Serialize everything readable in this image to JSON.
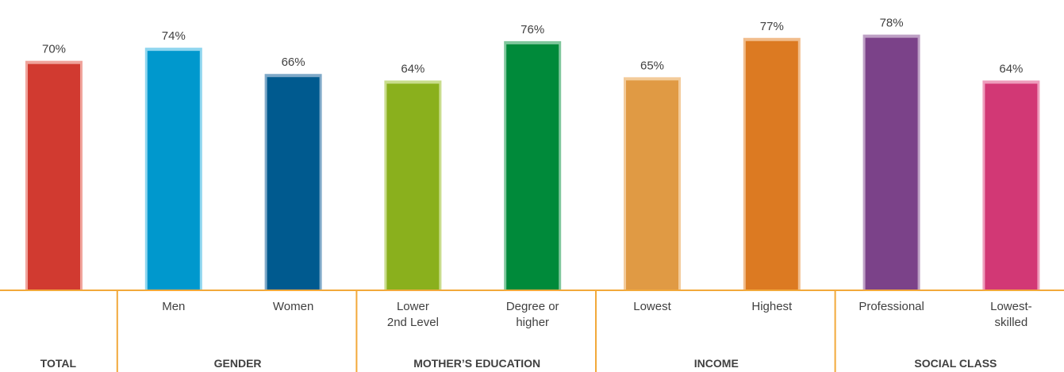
{
  "chart_data": {
    "type": "bar",
    "ylim": [
      0,
      100
    ],
    "grid": false,
    "categories": [
      {
        "id": "total",
        "label": [],
        "value": 70,
        "value_label": "70%",
        "color": "#d13a30",
        "border": "#f0a49c"
      },
      {
        "id": "men",
        "label": [
          "Men"
        ],
        "value": 74,
        "value_label": "74%",
        "color": "#0098cd",
        "border": "#8fd6ef"
      },
      {
        "id": "women",
        "label": [
          "Women"
        ],
        "value": 66,
        "value_label": "66%",
        "color": "#005a8f",
        "border": "#7fa9c8"
      },
      {
        "id": "lower-2nd-level",
        "label": [
          "Lower",
          "2nd Level"
        ],
        "value": 64,
        "value_label": "64%",
        "color": "#8ab01d",
        "border": "#c9dd8c"
      },
      {
        "id": "degree-or-higher",
        "label": [
          "Degree or",
          "higher"
        ],
        "value": 76,
        "value_label": "76%",
        "color": "#008a3a",
        "border": "#7fc79c"
      },
      {
        "id": "lowest-income",
        "label": [
          "Lowest"
        ],
        "value": 65,
        "value_label": "65%",
        "color": "#e09a44",
        "border": "#f3cb9a"
      },
      {
        "id": "highest-income",
        "label": [
          "Highest"
        ],
        "value": 77,
        "value_label": "77%",
        "color": "#dc7a22",
        "border": "#f1bd8c"
      },
      {
        "id": "professional",
        "label": [
          "Professional"
        ],
        "value": 78,
        "value_label": "78%",
        "color": "#7b4289",
        "border": "#bea0c5"
      },
      {
        "id": "lowest-skilled",
        "label": [
          "Lowest-",
          "skilled"
        ],
        "value": 64,
        "value_label": "64%",
        "color": "#d23875",
        "border": "#ee9dbc"
      }
    ],
    "groups": [
      {
        "id": "total",
        "label": "TOTAL",
        "count": 1
      },
      {
        "id": "gender",
        "label": "GENDER",
        "count": 2
      },
      {
        "id": "mothers-education",
        "label": "MOTHER’S EDUCATION",
        "count": 2
      },
      {
        "id": "income",
        "label": "INCOME",
        "count": 2
      },
      {
        "id": "social-class",
        "label": "SOCIAL CLASS",
        "count": 2
      }
    ],
    "axis_color": "#f2a93b"
  }
}
